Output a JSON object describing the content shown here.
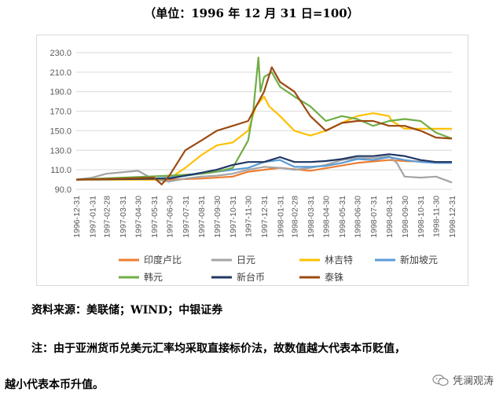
{
  "caption": "（单位：1996 年 12 月 31 日=100）",
  "source_text": "资料来源：美联储；WIND；中银证券",
  "note_line1": "注：由于亚洲货币兑美元汇率均采取直接标价法，故数值越大代表本币贬值，",
  "note_line2": "越小代表本币升值。",
  "watermark": "凭澜观涛",
  "chart_data": {
    "type": "line",
    "title": "",
    "xlabel": "",
    "ylabel": "",
    "ylim": [
      90,
      230
    ],
    "y_ticks": [
      "90.0",
      "110.0",
      "130.0",
      "150.0",
      "170.0",
      "190.0",
      "210.0",
      "230.0"
    ],
    "x_ticks": [
      "1996-12-31",
      "1997-01-31",
      "1997-02-28",
      "1997-03-31",
      "1997-04-30",
      "1997-05-31",
      "1997-06-30",
      "1997-07-31",
      "1997-08-31",
      "1997-09-30",
      "1997-10-31",
      "1997-11-30",
      "1997-12-31",
      "1998-01-31",
      "1998-02-28",
      "1998-03-31",
      "1998-04-30",
      "1998-05-31",
      "1998-06-30",
      "1998-07-31",
      "1998-08-31",
      "1998-09-30",
      "1998-10-31",
      "1998-11-30",
      "1998-12-31"
    ],
    "x_range": [
      "1996-12-31",
      "1998-12-31"
    ],
    "grid": true,
    "legend_position": "bottom",
    "series": [
      {
        "name": "印度卢比",
        "color": "#ED7D31",
        "x": [
          "1996-12-31",
          "1997-03-31",
          "1997-06-30",
          "1997-08-31",
          "1997-10-31",
          "1997-11-30",
          "1997-12-31",
          "1998-01-31",
          "1998-03-31",
          "1998-06-30",
          "1998-08-31",
          "1998-09-30",
          "1998-11-30",
          "1998-12-31"
        ],
        "values": [
          100,
          100,
          100,
          101,
          103,
          108,
          110,
          112,
          109,
          117,
          120,
          119,
          118,
          118
        ]
      },
      {
        "name": "日元",
        "color": "#A5A5A5",
        "x": [
          "1996-12-31",
          "1997-01-31",
          "1997-02-28",
          "1997-04-30",
          "1997-05-31",
          "1997-06-30",
          "1997-07-31",
          "1997-08-31",
          "1997-09-30",
          "1997-10-31",
          "1997-11-30",
          "1997-12-31",
          "1998-01-31",
          "1998-02-28",
          "1998-03-31",
          "1998-04-30",
          "1998-05-31",
          "1998-06-30",
          "1998-07-31",
          "1998-08-31",
          "1998-09-15",
          "1998-09-30",
          "1998-10-31",
          "1998-11-30",
          "1998-12-31"
        ],
        "values": [
          100,
          102,
          106,
          109,
          100,
          98,
          101,
          103,
          104,
          106,
          110,
          113,
          112,
          110,
          112,
          115,
          120,
          122,
          122,
          124,
          117,
          103,
          102,
          103,
          97
        ]
      },
      {
        "name": "林吉特",
        "color": "#FFC000",
        "x": [
          "1996-12-31",
          "1997-05-31",
          "1997-06-30",
          "1997-07-31",
          "1997-08-31",
          "1997-09-30",
          "1997-10-31",
          "1997-11-30",
          "1997-12-15",
          "1997-12-31",
          "1998-01-10",
          "1998-01-31",
          "1998-02-28",
          "1998-03-31",
          "1998-04-30",
          "1998-05-31",
          "1998-06-30",
          "1998-07-31",
          "1998-08-31",
          "1998-09-05",
          "1998-09-30",
          "1998-12-31"
        ],
        "values": [
          100,
          100,
          101,
          112,
          125,
          135,
          138,
          150,
          175,
          185,
          175,
          165,
          150,
          145,
          150,
          158,
          165,
          168,
          165,
          160,
          152,
          152
        ]
      },
      {
        "name": "新加坡元",
        "color": "#5B9BD5",
        "x": [
          "1996-12-31",
          "1997-05-31",
          "1997-06-30",
          "1997-07-31",
          "1997-08-31",
          "1997-09-30",
          "1997-10-31",
          "1997-11-30",
          "1997-12-31",
          "1998-01-31",
          "1998-02-28",
          "1998-03-31",
          "1998-04-30",
          "1998-05-31",
          "1998-06-30",
          "1998-07-31",
          "1998-08-31",
          "1998-09-30",
          "1998-10-31",
          "1998-11-30",
          "1998-12-31"
        ],
        "values": [
          100,
          101,
          102,
          104,
          106,
          108,
          110,
          112,
          118,
          120,
          113,
          113,
          114,
          117,
          121,
          120,
          123,
          120,
          118,
          117,
          117
        ]
      },
      {
        "name": "韩元",
        "color": "#70AD47",
        "x": [
          "1996-12-31",
          "1997-03-31",
          "1997-06-30",
          "1997-08-31",
          "1997-09-30",
          "1997-10-31",
          "1997-11-30",
          "1997-12-10",
          "1997-12-20",
          "1997-12-24",
          "1997-12-31",
          "1998-01-15",
          "1998-01-31",
          "1998-02-28",
          "1998-03-31",
          "1998-04-30",
          "1998-05-31",
          "1998-06-30",
          "1998-07-31",
          "1998-08-31",
          "1998-09-30",
          "1998-10-31",
          "1998-11-30",
          "1998-12-31"
        ],
        "values": [
          100,
          102,
          104,
          106,
          108,
          112,
          140,
          170,
          225,
          190,
          205,
          210,
          195,
          185,
          175,
          160,
          165,
          162,
          155,
          160,
          162,
          160,
          148,
          142
        ]
      },
      {
        "name": "新台币",
        "color": "#203864",
        "x": [
          "1996-12-31",
          "1997-06-30",
          "1997-07-31",
          "1997-08-31",
          "1997-09-30",
          "1997-10-31",
          "1997-11-30",
          "1997-12-31",
          "1998-01-31",
          "1998-02-28",
          "1998-03-31",
          "1998-04-30",
          "1998-05-31",
          "1998-06-30",
          "1998-07-31",
          "1998-08-31",
          "1998-09-30",
          "1998-10-31",
          "1998-11-30",
          "1998-12-31"
        ],
        "values": [
          100,
          101,
          104,
          107,
          110,
          115,
          118,
          118,
          123,
          118,
          118,
          119,
          121,
          124,
          124,
          126,
          124,
          120,
          118,
          118
        ]
      },
      {
        "name": "泰铢",
        "color": "#9C4A13",
        "x": [
          "1996-12-31",
          "1997-03-31",
          "1997-05-31",
          "1997-06-15",
          "1997-06-30",
          "1997-07-31",
          "1997-08-31",
          "1997-09-30",
          "1997-10-31",
          "1997-11-30",
          "1997-12-31",
          "1998-01-15",
          "1998-01-31",
          "1998-02-28",
          "1998-03-31",
          "1998-04-30",
          "1998-05-31",
          "1998-06-30",
          "1998-07-31",
          "1998-08-31",
          "1998-09-30",
          "1998-10-31",
          "1998-11-30",
          "1998-12-31"
        ],
        "values": [
          100,
          101,
          102,
          95,
          104,
          130,
          140,
          150,
          155,
          160,
          190,
          215,
          200,
          190,
          165,
          150,
          158,
          160,
          160,
          155,
          155,
          150,
          143,
          142
        ]
      }
    ]
  }
}
